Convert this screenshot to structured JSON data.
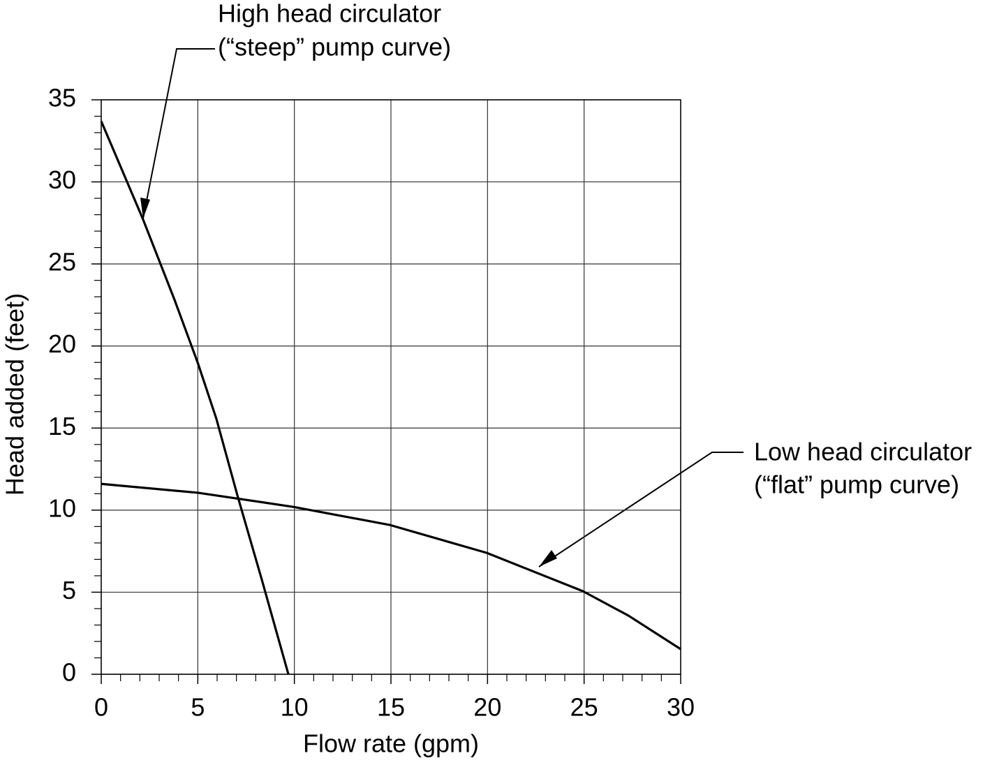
{
  "chart_data": {
    "type": "line",
    "x_label": "Flow rate (gpm)",
    "y_label": "Head added (feet)",
    "xlim": [
      0,
      30
    ],
    "xticks": [
      0,
      5,
      10,
      15,
      20,
      25,
      30
    ],
    "ylim": [
      0,
      35
    ],
    "yticks": [
      0,
      5,
      10,
      15,
      20,
      25,
      30,
      35
    ],
    "xminorticks": [
      1,
      2,
      3,
      4,
      6,
      7,
      8,
      9,
      11,
      12,
      13,
      14,
      16,
      17,
      18,
      19,
      21,
      22,
      23,
      24,
      26,
      27,
      28,
      29
    ],
    "yminorticks": [
      1,
      2,
      3,
      4,
      6,
      7,
      8,
      9,
      11,
      12,
      13,
      14,
      16,
      17,
      18,
      19,
      21,
      22,
      23,
      24,
      26,
      27,
      28,
      29,
      31,
      32,
      33,
      34
    ],
    "grid": true,
    "series": [
      {
        "name": "High head circulator",
        "color": "#000000",
        "x": [
          0,
          2.17,
          3.8,
          5,
          5.96,
          7.05,
          8.31,
          9.69
        ],
        "values": [
          33.7,
          27.7,
          22.8,
          18.97,
          15.57,
          10.9,
          5.78,
          0
        ]
      },
      {
        "name": "Low head circulator",
        "color": "#000000",
        "x": [
          0,
          5,
          9.94,
          14.93,
          19.95,
          24.94,
          27.3,
          30
        ],
        "values": [
          11.6,
          11.06,
          10.2,
          9.1,
          7.4,
          5.06,
          3.57,
          1.53
        ]
      }
    ],
    "annotations": [
      {
        "lines": [
          "High head circulator",
          "(“steep” pump curve)"
        ]
      },
      {
        "lines": [
          "Low head circulator",
          "(“flat” pump curve)"
        ]
      }
    ]
  }
}
